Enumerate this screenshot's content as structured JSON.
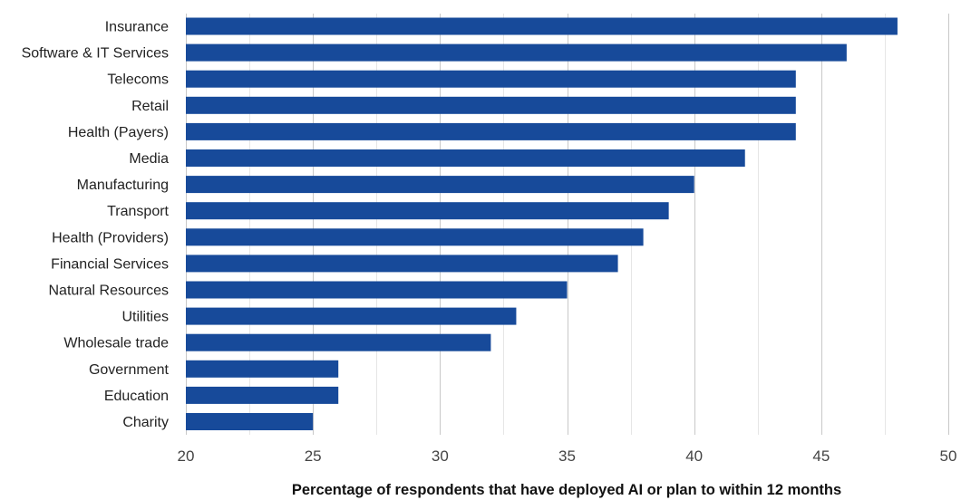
{
  "chart_data": {
    "type": "bar",
    "orientation": "horizontal",
    "categories": [
      "Insurance",
      "Software & IT Services",
      "Telecoms",
      "Retail",
      "Health (Payers)",
      "Media",
      "Manufacturing",
      "Transport",
      "Health (Providers)",
      "Financial Services",
      "Natural Resources",
      "Utilities",
      "Wholesale trade",
      "Government",
      "Education",
      "Charity"
    ],
    "values": [
      48,
      46,
      44,
      44,
      44,
      42,
      40,
      39,
      38,
      37,
      35,
      33,
      32,
      26,
      26,
      25
    ],
    "xlabel": "Percentage of respondents that have deployed AI or plan to within 12 months",
    "ylabel": "",
    "xlim": [
      20,
      50
    ],
    "xticks": [
      "20",
      "25",
      "30",
      "35",
      "40",
      "45",
      "50"
    ],
    "grid": true,
    "bar_color": "#174a9a"
  }
}
